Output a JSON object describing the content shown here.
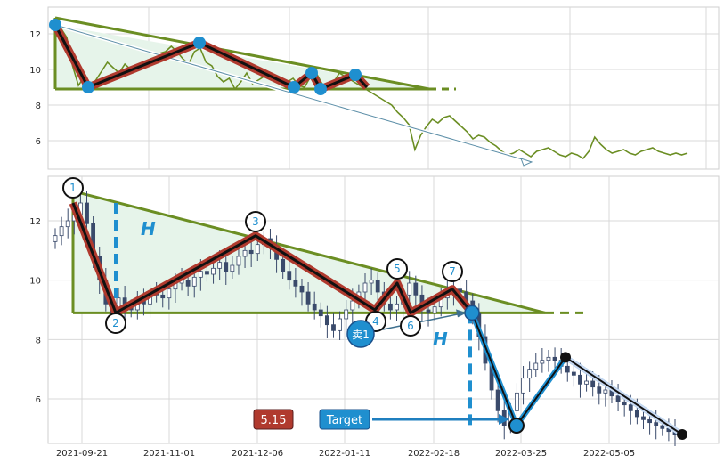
{
  "chart_data": [
    {
      "type": "line",
      "title": "",
      "xlabel": "",
      "ylabel": "",
      "ylim": [
        4.4,
        13.5
      ],
      "yticks": [
        6,
        8,
        10,
        12
      ],
      "grid": true,
      "colors": {
        "line": "#6b8e23",
        "zigzag": "#b03a2e",
        "pivot": "#1f8fcf",
        "fill": "#e6f4ea"
      },
      "series": [
        {
          "values": [
            12.5,
            12.3,
            11.8,
            10.2,
            9.1,
            9.6,
            9.0,
            9.4,
            9.9,
            10.4,
            10.1,
            9.8,
            10.3,
            10.0,
            9.9,
            10.4,
            10.2,
            10.6,
            10.9,
            11.0,
            11.3,
            11.0,
            10.6,
            10.3,
            11.0,
            11.2,
            10.4,
            10.2,
            9.6,
            9.3,
            9.5,
            8.9,
            9.3,
            9.8,
            9.2,
            9.4,
            9.6,
            9.8,
            9.4,
            9.1,
            9.3,
            9.5,
            9.1,
            9.0,
            9.6,
            9.8,
            9.2,
            9.0,
            9.3,
            9.8,
            9.6,
            9.4,
            9.2,
            9.0,
            8.8,
            8.6,
            8.4,
            8.2,
            8.0,
            7.6,
            7.3,
            6.9,
            5.5,
            6.3,
            6.8,
            7.2,
            7.0,
            7.3,
            7.4,
            7.1,
            6.8,
            6.5,
            6.1,
            6.3,
            6.2,
            5.9,
            5.7,
            5.4,
            5.2,
            5.3,
            5.5,
            5.3,
            5.1,
            5.4,
            5.5,
            5.6,
            5.4,
            5.2,
            5.1,
            5.3,
            5.2,
            5.0,
            5.4,
            6.2,
            5.8,
            5.5,
            5.3,
            5.4,
            5.5,
            5.3,
            5.2,
            5.4,
            5.5,
            5.6,
            5.4,
            5.3,
            5.2,
            5.3,
            5.2,
            5.3
          ]
        }
      ],
      "pivots": [
        {
          "label": "",
          "y": 12.5
        },
        {
          "label": "",
          "y": 9.0
        },
        {
          "label": "",
          "y": 11.5
        },
        {
          "label": "",
          "y": 9.0
        },
        {
          "label": "",
          "y": 9.8
        },
        {
          "label": "",
          "y": 8.9
        },
        {
          "label": "",
          "y": 9.7
        }
      ]
    },
    {
      "type": "candlestick",
      "title": "",
      "xlabel": "",
      "ylabel": "",
      "ylim": [
        4.5,
        13.5
      ],
      "yticks": [
        6,
        8,
        10,
        12
      ],
      "x_ticks": [
        "2021-09-21",
        "2021-11-01",
        "2021-12-06",
        "2022-01-11",
        "2022-02-18",
        "2022-03-25",
        "2022-05-05"
      ],
      "grid": true,
      "colors": {
        "up": "#ffffff",
        "down": "#3a4a6b",
        "zigzag": "#b03a2e",
        "pivot": "#1f8fcf",
        "triangle": "#6b8e23",
        "fill": "#e6f4ea",
        "dash": "#1f8fcf"
      },
      "pivots": [
        {
          "label": "1",
          "y": 12.6
        },
        {
          "label": "2",
          "y": 8.9
        },
        {
          "label": "3",
          "y": 11.5
        },
        {
          "label": "4",
          "y": 9.0
        },
        {
          "label": "5",
          "y": 9.9
        },
        {
          "label": "6",
          "y": 8.9
        },
        {
          "label": "7",
          "y": 9.7
        }
      ],
      "closes": [
        11.5,
        11.8,
        12.0,
        12.2,
        12.6,
        11.9,
        10.8,
        10.0,
        9.2,
        8.9,
        9.4,
        9.1,
        9.0,
        9.3,
        9.2,
        9.6,
        9.5,
        9.4,
        9.7,
        9.9,
        10.0,
        9.8,
        10.1,
        10.3,
        10.2,
        10.4,
        10.6,
        10.3,
        10.5,
        10.8,
        11.0,
        10.9,
        11.2,
        11.4,
        11.1,
        10.7,
        10.3,
        10.0,
        9.8,
        9.6,
        9.2,
        9.0,
        8.8,
        8.5,
        8.3,
        8.7,
        9.0,
        9.3,
        9.6,
        9.9,
        10.0,
        9.6,
        9.2,
        9.0,
        9.2,
        9.5,
        9.9,
        9.5,
        9.0,
        8.9,
        9.1,
        9.4,
        9.6,
        9.7,
        9.6,
        9.3,
        8.9,
        8.1,
        7.2,
        6.3,
        5.6,
        5.1,
        5.6,
        6.2,
        6.7,
        7.0,
        7.2,
        7.3,
        7.4,
        7.3,
        7.1,
        6.9,
        6.8,
        6.5,
        6.6,
        6.4,
        6.2,
        6.3,
        6.1,
        5.9,
        5.8,
        5.6,
        5.4,
        5.3,
        5.2,
        5.1,
        5.0,
        4.9,
        4.8
      ],
      "annotations": {
        "h_label_1": "H",
        "h_label_2": "H",
        "sell_label": "卖1",
        "target_label": "Target",
        "target_value": "5.15"
      }
    }
  ]
}
